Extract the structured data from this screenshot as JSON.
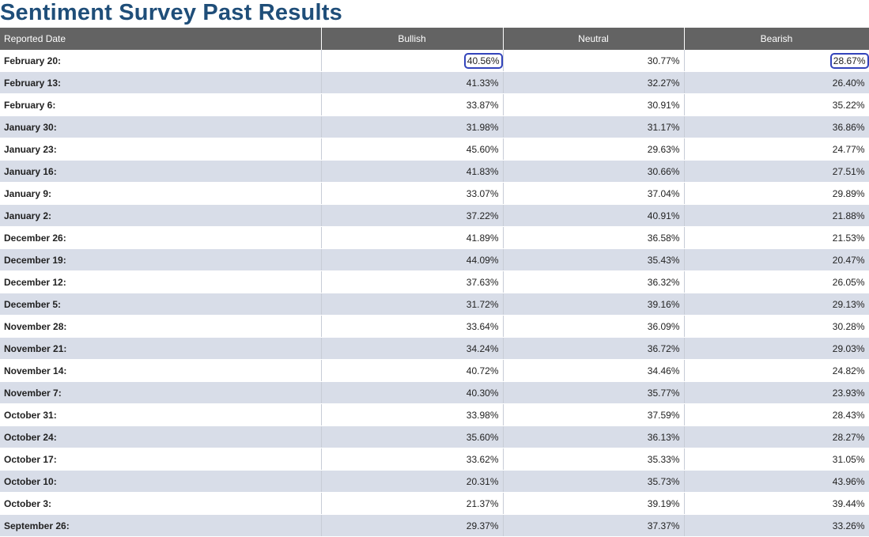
{
  "page": {
    "title": "Sentiment Survey Past Results"
  },
  "table": {
    "columns": [
      "Reported Date",
      "Bullish",
      "Neutral",
      "Bearish"
    ],
    "rows": [
      {
        "date": "February 20:",
        "bullish": "40.56%",
        "neutral": "30.77%",
        "bearish": "28.67%"
      },
      {
        "date": "February 13:",
        "bullish": "41.33%",
        "neutral": "32.27%",
        "bearish": "26.40%"
      },
      {
        "date": "February 6:",
        "bullish": "33.87%",
        "neutral": "30.91%",
        "bearish": "35.22%"
      },
      {
        "date": "January 30:",
        "bullish": "31.98%",
        "neutral": "31.17%",
        "bearish": "36.86%"
      },
      {
        "date": "January 23:",
        "bullish": "45.60%",
        "neutral": "29.63%",
        "bearish": "24.77%"
      },
      {
        "date": "January 16:",
        "bullish": "41.83%",
        "neutral": "30.66%",
        "bearish": "27.51%"
      },
      {
        "date": "January 9:",
        "bullish": "33.07%",
        "neutral": "37.04%",
        "bearish": "29.89%"
      },
      {
        "date": "January 2:",
        "bullish": "37.22%",
        "neutral": "40.91%",
        "bearish": "21.88%"
      },
      {
        "date": "December 26:",
        "bullish": "41.89%",
        "neutral": "36.58%",
        "bearish": "21.53%"
      },
      {
        "date": "December 19:",
        "bullish": "44.09%",
        "neutral": "35.43%",
        "bearish": "20.47%"
      },
      {
        "date": "December 12:",
        "bullish": "37.63%",
        "neutral": "36.32%",
        "bearish": "26.05%"
      },
      {
        "date": "December 5:",
        "bullish": "31.72%",
        "neutral": "39.16%",
        "bearish": "29.13%"
      },
      {
        "date": "November 28:",
        "bullish": "33.64%",
        "neutral": "36.09%",
        "bearish": "30.28%"
      },
      {
        "date": "November 21:",
        "bullish": "34.24%",
        "neutral": "36.72%",
        "bearish": "29.03%"
      },
      {
        "date": "November 14:",
        "bullish": "40.72%",
        "neutral": "34.46%",
        "bearish": "24.82%"
      },
      {
        "date": "November 7:",
        "bullish": "40.30%",
        "neutral": "35.77%",
        "bearish": "23.93%"
      },
      {
        "date": "October 31:",
        "bullish": "33.98%",
        "neutral": "37.59%",
        "bearish": "28.43%"
      },
      {
        "date": "October 24:",
        "bullish": "35.60%",
        "neutral": "36.13%",
        "bearish": "28.27%"
      },
      {
        "date": "October 17:",
        "bullish": "33.62%",
        "neutral": "35.33%",
        "bearish": "31.05%"
      },
      {
        "date": "October 10:",
        "bullish": "20.31%",
        "neutral": "35.73%",
        "bearish": "43.96%"
      },
      {
        "date": "October 3:",
        "bullish": "21.37%",
        "neutral": "39.19%",
        "bearish": "39.44%"
      },
      {
        "date": "September 26:",
        "bullish": "29.37%",
        "neutral": "37.37%",
        "bearish": "33.26%"
      }
    ],
    "highlighted_cells": [
      {
        "row": 0,
        "column": "bullish"
      },
      {
        "row": 0,
        "column": "bearish"
      }
    ],
    "colors": {
      "title": "#1f4e79",
      "header_bg": "#636363",
      "row_alt_bg": "#d8dde8",
      "highlight_border": "#3344bb"
    }
  }
}
